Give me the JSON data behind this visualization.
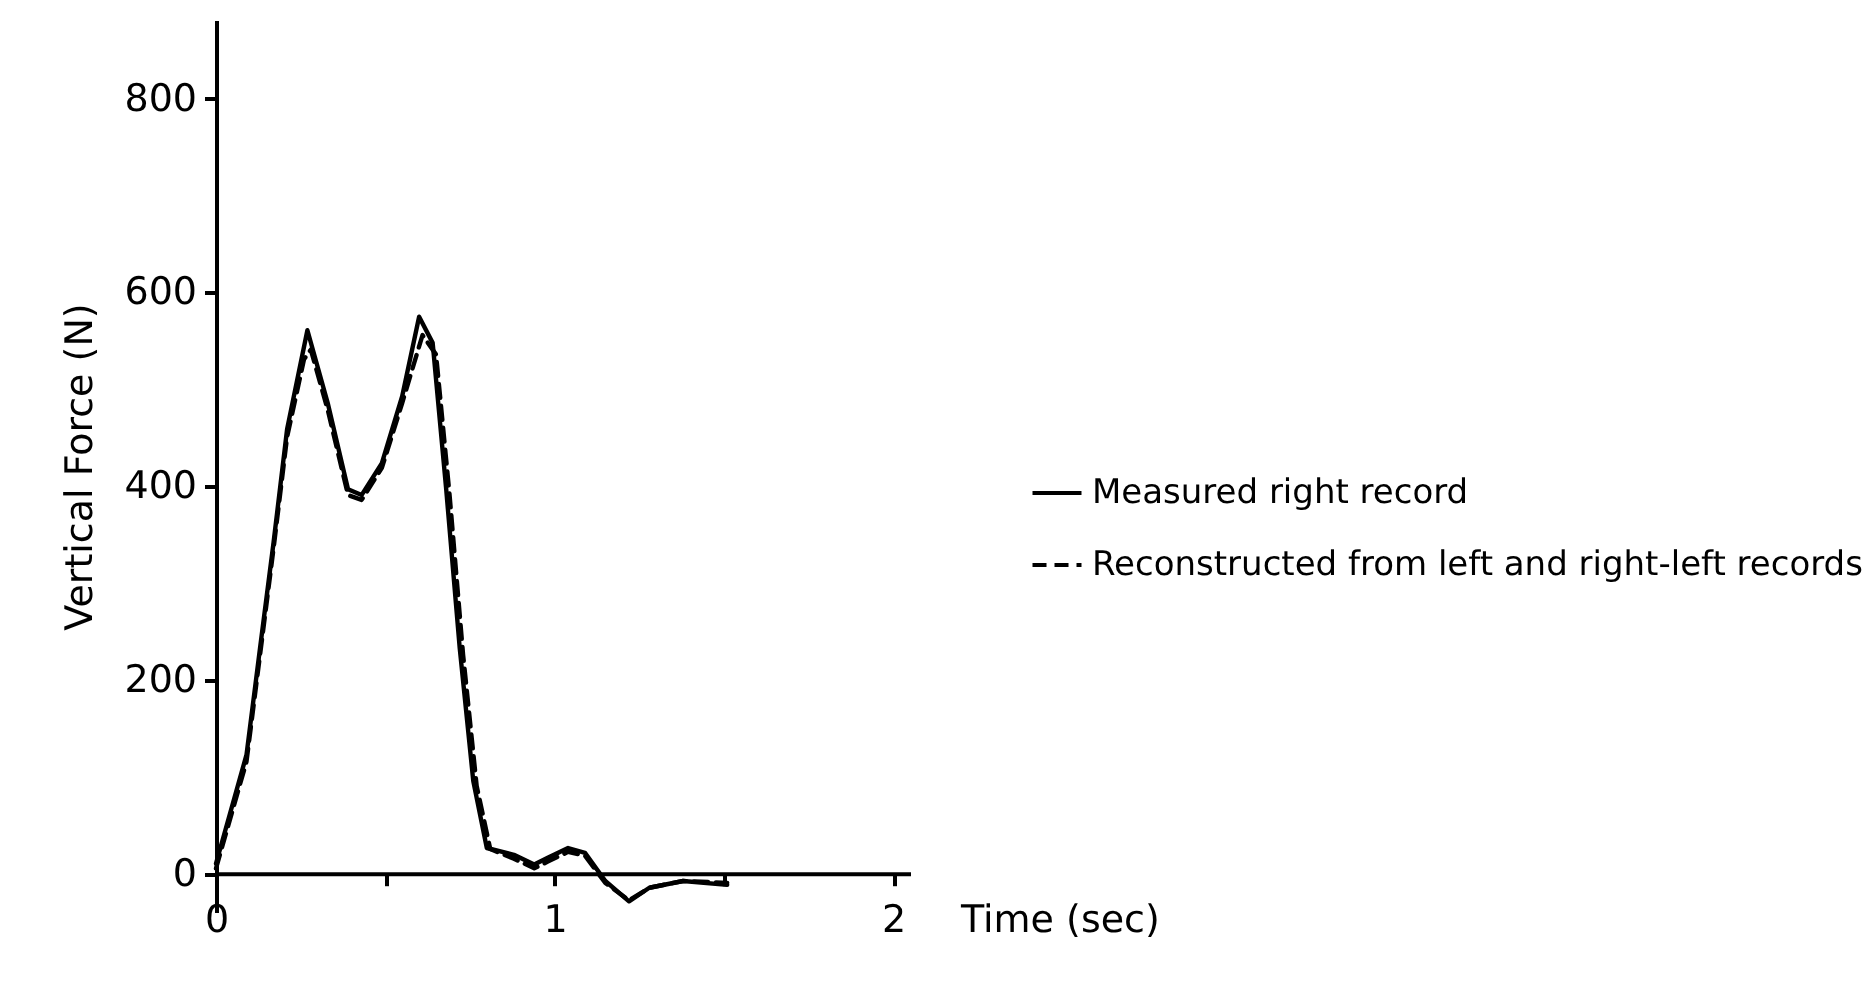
{
  "chart_data": {
    "type": "line",
    "xlabel": "Time (sec)",
    "ylabel": "Vertical Force (N)",
    "xlim": [
      0,
      2.05
    ],
    "ylim": [
      -40,
      880
    ],
    "xticks": [
      0,
      {
        "value": 0.5,
        "label": null
      },
      1,
      {
        "value": 1.5,
        "label": null
      },
      2
    ],
    "yticks": [
      0,
      200,
      400,
      600,
      800
    ],
    "grid": false,
    "legend": "right",
    "marker": "none",
    "series": [
      {
        "name": "Measured right record",
        "color": "#000000",
        "line_style": "solid",
        "x": [
          0,
          0.09,
          0.13,
          0.17,
          0.21,
          0.27,
          0.33,
          0.39,
          0.43,
          0.49,
          0.55,
          0.6,
          0.64,
          0.68,
          0.72,
          0.76,
          0.8,
          0.88,
          0.94,
          0.98,
          1.04,
          1.09,
          1.15,
          1.22,
          1.28,
          1.38,
          1.51
        ],
        "values": [
          10,
          122,
          232,
          341,
          458,
          560,
          485,
          396,
          390,
          423,
          492,
          574,
          547,
          396,
          232,
          95,
          26,
          19,
          9,
          16,
          26,
          21,
          -8,
          -29,
          -15,
          -8,
          -12
        ]
      },
      {
        "name": "Reconstructed from left and right-left records",
        "color": "#000000",
        "line_style": "dashed",
        "x": [
          0,
          0.09,
          0.13,
          0.17,
          0.21,
          0.26,
          0.28,
          0.33,
          0.39,
          0.43,
          0.49,
          0.55,
          0.61,
          0.65,
          0.69,
          0.73,
          0.77,
          0.81,
          0.88,
          0.94,
          0.98,
          1.04,
          1.09,
          1.15,
          1.22,
          1.28,
          1.38,
          1.51
        ],
        "values": [
          5,
          115,
          225,
          335,
          450,
          530,
          540,
          478,
          390,
          385,
          418,
          485,
          555,
          535,
          390,
          225,
          90,
          25,
          15,
          5,
          12,
          22,
          18,
          -10,
          -28,
          -15,
          -8,
          -10
        ]
      }
    ]
  }
}
